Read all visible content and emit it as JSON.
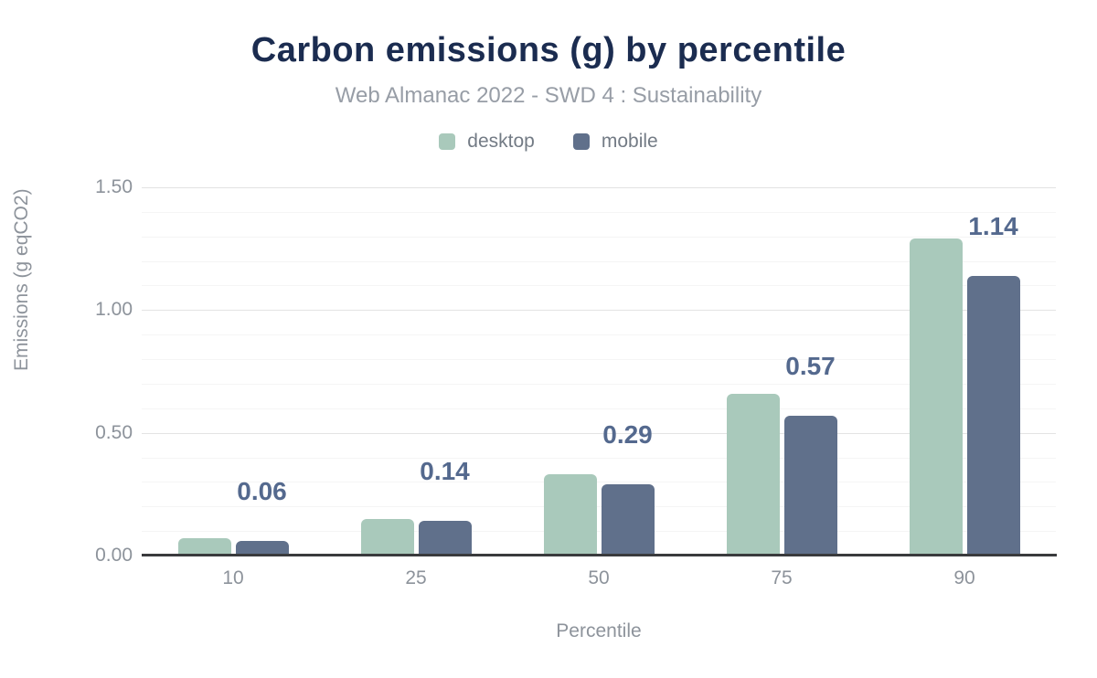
{
  "title": "Carbon emissions (g) by percentile",
  "subtitle": "Web Almanac 2022 - SWD 4 : Sustainability",
  "legend": {
    "items": [
      {
        "label": "desktop",
        "color": "#a9c9bb"
      },
      {
        "label": "mobile",
        "color": "#60708b"
      }
    ]
  },
  "colors": {
    "title": "#1b2c50",
    "subtitle": "#979da6",
    "legend_text": "#737b85",
    "tick_text": "#8d939b",
    "data_label": "#54698e",
    "desktop_bar": "#a9c9bb",
    "mobile_bar": "#60708b",
    "axis_line": "#3a3b3d",
    "grid_major": "#e3e3e3",
    "grid_minor": "#f5f5f5",
    "background": "#ffffff"
  },
  "chart_data": {
    "type": "bar",
    "title": "Carbon emissions (g) by percentile",
    "subtitle": "Web Almanac 2022 - SWD 4 : Sustainability",
    "categories": [
      "10",
      "25",
      "50",
      "75",
      "90"
    ],
    "series": [
      {
        "name": "desktop",
        "color": "#a9c9bb",
        "values": [
          0.07,
          0.15,
          0.33,
          0.66,
          1.29
        ]
      },
      {
        "name": "mobile",
        "color": "#60708b",
        "values": [
          0.06,
          0.14,
          0.29,
          0.57,
          1.14
        ],
        "data_labels": [
          "0.06",
          "0.14",
          "0.29",
          "0.57",
          "1.14"
        ]
      }
    ],
    "xlabel": "Percentile",
    "ylabel": "Emissions (g eqCO2)",
    "ylim": [
      0,
      1.5
    ],
    "yticks": [
      "0.00",
      "0.50",
      "1.00",
      "1.50"
    ],
    "grid": {
      "orientation": "horizontal",
      "minor_step": 0.1,
      "major_step": 0.5
    },
    "legend_position": "top"
  }
}
